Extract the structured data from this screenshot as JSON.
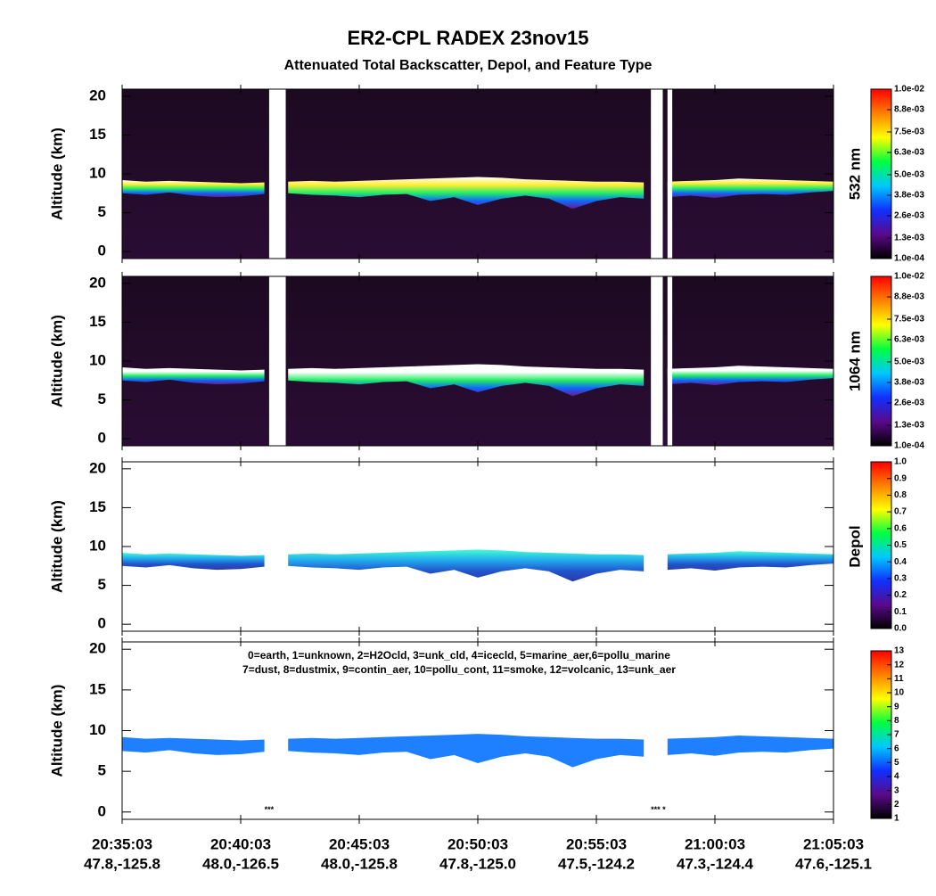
{
  "title": "ER2-CPL RADEX 23nov15",
  "subtitle": "Attenuated Total Backscatter, Depol, and Feature Type",
  "xlim": [
    0,
    30
  ],
  "xticks": [
    {
      "value": 0,
      "label": "20:35:03"
    },
    {
      "value": 5,
      "label": "20:40:03"
    },
    {
      "value": 10,
      "label": "20:45:03"
    },
    {
      "value": 15,
      "label": "20:50:03"
    },
    {
      "value": 20,
      "label": "20:55:03"
    },
    {
      "value": 25,
      "label": "21:00:03"
    },
    {
      "value": 30,
      "label": "21:05:03"
    }
  ],
  "xtick_locations": [
    "47.8,-125.8",
    "48.0,-126.5",
    "48.0,-125.8",
    "47.8,-125.0",
    "47.5,-124.2",
    "47.3,-124.4",
    "47.6,-125.1"
  ],
  "chart_data": [
    {
      "type": "curtain",
      "ylabel": "Altitude (km)",
      "side_label": "532 nm",
      "ylim": [
        -0.9,
        20.9
      ],
      "yticks": [
        0,
        5,
        10,
        15,
        20
      ],
      "background": "#1c0a20",
      "layer_colors": [
        "#ffffff",
        "#ffee33",
        "#22ee66",
        "#1166ff",
        "#6a1a90"
      ],
      "x": [
        0,
        1,
        2,
        3,
        4,
        5,
        6,
        6.5,
        7,
        8,
        9,
        10,
        11,
        12,
        13,
        14,
        15,
        16,
        17,
        18,
        19,
        20,
        21,
        22,
        22.7,
        23,
        24,
        25,
        26,
        27,
        28,
        29,
        30
      ],
      "top": [
        9.2,
        9.0,
        9.1,
        9.0,
        8.9,
        8.8,
        8.9,
        null,
        9.0,
        9.1,
        9.0,
        9.1,
        9.2,
        9.3,
        9.4,
        9.5,
        9.6,
        9.5,
        9.3,
        9.2,
        9.1,
        9.0,
        9.0,
        8.9,
        null,
        9.0,
        9.1,
        9.2,
        9.4,
        9.3,
        9.2,
        9.1,
        9.0
      ],
      "base": [
        7.5,
        7.3,
        7.6,
        7.2,
        7.0,
        7.1,
        7.4,
        null,
        7.5,
        7.3,
        7.2,
        7.0,
        7.3,
        7.4,
        6.5,
        7.0,
        6.0,
        6.8,
        7.2,
        6.8,
        5.5,
        6.5,
        7.0,
        6.8,
        null,
        7.0,
        7.2,
        6.9,
        7.3,
        7.4,
        7.3,
        7.6,
        7.8
      ],
      "gaps": [
        [
          6.2,
          6.9
        ],
        [
          22.3,
          22.8
        ],
        [
          23.0,
          23.2
        ]
      ],
      "cmap": [
        "#000000",
        "#5a0a8a",
        "#1030ff",
        "#00c8ff",
        "#00ff40",
        "#ffff00",
        "#ff8000",
        "#ff0000"
      ],
      "clim": [
        0.0001,
        0.01
      ],
      "cticks": [
        {
          "value": 0.0001,
          "label": "1.0e-04"
        },
        {
          "value": 0.0013,
          "label": "1.3e-03"
        },
        {
          "value": 0.0026,
          "label": "2.6e-03"
        },
        {
          "value": 0.0038,
          "label": "3.8e-03"
        },
        {
          "value": 0.005,
          "label": "5.0e-03"
        },
        {
          "value": 0.0063,
          "label": "6.3e-03"
        },
        {
          "value": 0.0075,
          "label": "7.5e-03"
        },
        {
          "value": 0.0088,
          "label": "8.8e-03"
        },
        {
          "value": 0.01,
          "label": "1.0e-02"
        }
      ]
    },
    {
      "type": "curtain",
      "ylabel": "Altitude (km)",
      "side_label": "1064 nm",
      "ylim": [
        -0.9,
        20.9
      ],
      "yticks": [
        0,
        5,
        10,
        15,
        20
      ],
      "background": "#1c0a20",
      "layer_colors": [
        "#ffffff",
        "#ffffff",
        "#22ee66",
        "#1166ff",
        "#6a1a90"
      ],
      "x": [
        0,
        1,
        2,
        3,
        4,
        5,
        6,
        6.5,
        7,
        8,
        9,
        10,
        11,
        12,
        13,
        14,
        15,
        16,
        17,
        18,
        19,
        20,
        21,
        22,
        22.7,
        23,
        24,
        25,
        26,
        27,
        28,
        29,
        30
      ],
      "top": [
        9.2,
        9.0,
        9.1,
        9.0,
        8.9,
        8.8,
        8.9,
        null,
        9.0,
        9.1,
        9.0,
        9.1,
        9.2,
        9.3,
        9.4,
        9.5,
        9.6,
        9.5,
        9.3,
        9.2,
        9.1,
        9.0,
        9.0,
        8.9,
        null,
        9.0,
        9.1,
        9.2,
        9.4,
        9.3,
        9.2,
        9.1,
        9.0
      ],
      "base": [
        7.5,
        7.3,
        7.6,
        7.2,
        7.0,
        7.1,
        7.4,
        null,
        7.5,
        7.3,
        7.2,
        7.0,
        7.3,
        7.4,
        6.5,
        7.0,
        6.0,
        6.8,
        7.2,
        6.8,
        5.5,
        6.5,
        7.0,
        6.8,
        null,
        7.0,
        7.2,
        6.9,
        7.3,
        7.4,
        7.3,
        7.6,
        7.8
      ],
      "gaps": [
        [
          6.2,
          6.9
        ],
        [
          22.3,
          22.8
        ],
        [
          23.0,
          23.2
        ]
      ],
      "cmap": [
        "#000000",
        "#5a0a8a",
        "#1030ff",
        "#00c8ff",
        "#00ff40",
        "#ffff00",
        "#ff8000",
        "#ff0000"
      ],
      "clim": [
        0.0001,
        0.01
      ],
      "cticks": [
        {
          "value": 0.0001,
          "label": "1.0e-04"
        },
        {
          "value": 0.0013,
          "label": "1.3e-03"
        },
        {
          "value": 0.0026,
          "label": "2.6e-03"
        },
        {
          "value": 0.0038,
          "label": "3.8e-03"
        },
        {
          "value": 0.005,
          "label": "5.0e-03"
        },
        {
          "value": 0.0063,
          "label": "6.3e-03"
        },
        {
          "value": 0.0075,
          "label": "7.5e-03"
        },
        {
          "value": 0.0088,
          "label": "8.8e-03"
        },
        {
          "value": 0.01,
          "label": "1.0e-02"
        }
      ]
    },
    {
      "type": "curtain",
      "ylabel": "Altitude (km)",
      "side_label": "Depol",
      "ylim": [
        -0.9,
        20.9
      ],
      "yticks": [
        0,
        5,
        10,
        15,
        20
      ],
      "background": "#ffffff",
      "layer_colors": [
        "#40ffd0",
        "#22aaee",
        "#2255cc",
        "#2a3aa8"
      ],
      "x": [
        0,
        1,
        2,
        3,
        4,
        5,
        6,
        6.5,
        7,
        8,
        9,
        10,
        11,
        12,
        13,
        14,
        15,
        16,
        17,
        18,
        19,
        20,
        21,
        22,
        22.7,
        23,
        24,
        25,
        26,
        27,
        28,
        29,
        30
      ],
      "top": [
        9.2,
        9.0,
        9.1,
        9.0,
        8.9,
        8.8,
        8.9,
        null,
        9.0,
        9.1,
        9.0,
        9.1,
        9.2,
        9.3,
        9.4,
        9.5,
        9.6,
        9.5,
        9.3,
        9.2,
        9.1,
        9.0,
        9.0,
        8.9,
        null,
        9.0,
        9.1,
        9.2,
        9.4,
        9.3,
        9.2,
        9.1,
        9.0
      ],
      "base": [
        7.5,
        7.3,
        7.6,
        7.2,
        7.0,
        7.1,
        7.4,
        null,
        7.5,
        7.3,
        7.2,
        7.0,
        7.3,
        7.4,
        6.5,
        7.0,
        6.0,
        6.8,
        7.2,
        6.8,
        5.5,
        6.5,
        7.0,
        6.8,
        null,
        7.0,
        7.2,
        6.9,
        7.3,
        7.4,
        7.3,
        7.6,
        7.8
      ],
      "cmap": [
        "#000000",
        "#5a0a8a",
        "#1030ff",
        "#00c8ff",
        "#00ff40",
        "#ffff00",
        "#ff8000",
        "#ff0000"
      ],
      "clim": [
        0,
        1
      ],
      "cticks": [
        {
          "value": 0,
          "label": "0.0"
        },
        0.1,
        0.2,
        0.3,
        0.4,
        0.5,
        0.6,
        0.7,
        0.8,
        0.9,
        {
          "value": 1,
          "label": "1.0"
        }
      ]
    },
    {
      "type": "curtain",
      "ylabel": "Altitude (km)",
      "ylim": [
        -0.9,
        20.9
      ],
      "yticks": [
        0,
        5,
        10,
        15,
        20
      ],
      "background": "#ffffff",
      "layer_colors": [
        "#1e80ff"
      ],
      "notes": [
        "0=earth, 1=unknown, 2=H2Ocld, 3=unk_cld, 4=icecld, 5=marine_aer,6=pollu_marine",
        "7=dust, 8=dustmix, 9=contin_aer, 10=pollu_cont, 11=smoke, 12=volcanic, 13=unk_aer"
      ],
      "surface_marks": [
        "***",
        "*** *"
      ],
      "x": [
        0,
        1,
        2,
        3,
        4,
        5,
        6,
        6.5,
        7,
        8,
        9,
        10,
        11,
        12,
        13,
        14,
        15,
        16,
        17,
        18,
        19,
        20,
        21,
        22,
        22.7,
        23,
        24,
        25,
        26,
        27,
        28,
        29,
        30
      ],
      "top": [
        9.2,
        9.0,
        9.1,
        9.0,
        8.9,
        8.8,
        8.9,
        null,
        9.0,
        9.1,
        9.0,
        9.1,
        9.2,
        9.3,
        9.4,
        9.5,
        9.6,
        9.5,
        9.3,
        9.2,
        9.1,
        9.0,
        9.0,
        8.9,
        null,
        9.0,
        9.1,
        9.2,
        9.4,
        9.3,
        9.2,
        9.1,
        9.0
      ],
      "base": [
        7.5,
        7.3,
        7.6,
        7.2,
        7.0,
        7.1,
        7.4,
        null,
        7.5,
        7.3,
        7.2,
        7.0,
        7.3,
        7.4,
        6.5,
        7.0,
        6.0,
        6.8,
        7.2,
        6.8,
        5.5,
        6.5,
        7.0,
        6.8,
        null,
        7.0,
        7.2,
        6.9,
        7.3,
        7.4,
        7.3,
        7.6,
        7.8
      ],
      "cmap": [
        "#000000",
        "#5a0a8a",
        "#1030ff",
        "#00c8ff",
        "#00ff40",
        "#ffff00",
        "#ff8000",
        "#ff0000"
      ],
      "clim": [
        1,
        13
      ],
      "cticks": [
        1,
        2,
        3,
        4,
        5,
        6,
        7,
        8,
        9,
        10,
        11,
        12,
        13
      ]
    }
  ]
}
